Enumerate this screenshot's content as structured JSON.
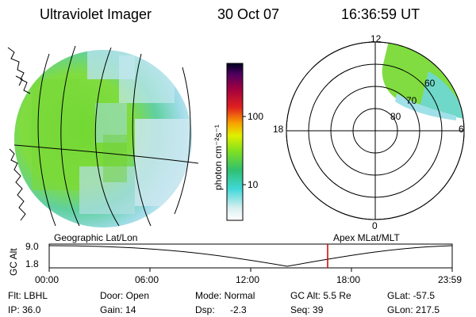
{
  "header": {
    "instrument": "Ultraviolet Imager",
    "date": "30 Oct 07",
    "time": "16:36:59 UT"
  },
  "colorbar": {
    "label": "photon cm⁻²s⁻¹",
    "ticks": [
      "100",
      "10"
    ]
  },
  "polar_plot": {
    "mlt_labels": [
      "12",
      "18",
      "6",
      "0"
    ],
    "mlat_labels": [
      "60",
      "70",
      "80"
    ]
  },
  "altitude_panel": {
    "ylabel": "GC Alt",
    "yticks": [
      "9.0",
      "1.8"
    ],
    "left_title": "Geographic Lat/Lon",
    "right_title": "Apex MLat/MLT",
    "xticks": [
      "00:00",
      "06:00",
      "12:00",
      "18:00",
      "23:59"
    ],
    "marker_time": "16:37",
    "marker_color": "#cc0000"
  },
  "info": {
    "flt": "Flt: LBHL",
    "ip": "IP: 36.0",
    "door": "Door: Open",
    "gain": "Gain: 14",
    "mode": "Mode: Normal",
    "dsp_label": "Dsp:",
    "dsp_value": "-2.3",
    "gcalt": "GC Alt: 5.5 Re",
    "seq": "Seq: 39",
    "glat": "GLat: -57.5",
    "glon": "GLon: 217.5"
  }
}
